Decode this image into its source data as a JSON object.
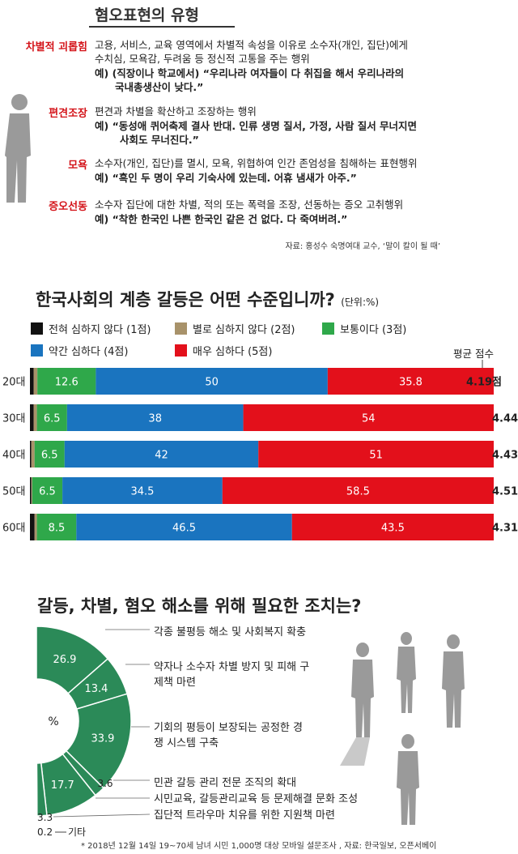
{
  "section1": {
    "title": "혐오표현의 유형",
    "items": [
      {
        "term": "차별적 괴롭힘",
        "lines": [
          "고용, 서비스, 교육 영역에서 차별적 속성을 이유로 소수자(개인, 집단)에게",
          "수치심, 모욕감, 두려움 등 정신적 고통을 주는 행위"
        ],
        "example": [
          "예) (직장이나 학교에서) “우리나라 여자들이 다 취집을 해서 우리나라의",
          "국내총생산이 낮다.”"
        ]
      },
      {
        "term": "편견조장",
        "lines": [
          "편견과 차별을 확산하고 조장하는 행위"
        ],
        "example": [
          "예) “동성애 퀴어축제 결사 반대. 인류 생명 질서, 가정, 사람 질서 무너지면",
          "사회도 무너진다.”"
        ]
      },
      {
        "term": "모욕",
        "lines": [
          "소수자(개인, 집단)를 멸시, 모욕, 위협하여 인간 존엄성을 침해하는 표현행위"
        ],
        "example": [
          "예) “흑인 두 명이 우리 기숙사에 있는데. 어휴 냄새가 아주.”"
        ]
      },
      {
        "term": "증오선동",
        "lines": [
          "소수자 집단에 대한 차별, 적의 또는 폭력을 조장, 선동하는 증오 고취행위"
        ],
        "example": [
          "예) “착한 한국인 나쁜 한국인 같은 건 없다. 다 죽여버려.”"
        ]
      }
    ],
    "source": "자료: 홍성수 숙명여대 교수, ‘말이 칼이 될 때’"
  },
  "section2": {
    "title": "한국사회의 계층 갈등은 어떤 수준입니까?",
    "unit": "(단위:%)",
    "avg_header": "평균 점수"
  },
  "section3": {
    "title": "갈등, 차별, 혐오 해소를 위해 필요한 조치는?",
    "center_label": "%",
    "others_label": "기타"
  },
  "footnote": "* 2018년 12월 14일 19~70세 남녀 시민 1,000명 대상 모바일 설문조사 , 자료: 한국일보, 오픈서베이",
  "colors": {
    "level1": "#111111",
    "level2": "#a8926a",
    "level3": "#2fa84a",
    "level4": "#1a74bf",
    "level5": "#e3101b",
    "donut": "#2b8a58",
    "accent_red": "#d4141a"
  },
  "chart_data": [
    {
      "type": "bar",
      "orientation": "horizontal-stacked",
      "categories": [
        "20대",
        "30대",
        "40대",
        "50대",
        "60대"
      ],
      "series": [
        {
          "name": "전혀 심하지 않다 (1점)",
          "color": "#111111",
          "values": [
            0.8,
            0.8,
            0.3,
            0.3,
            1.0
          ]
        },
        {
          "name": "별로 심하지 않다 (2점)",
          "color": "#a8926a",
          "values": [
            0.8,
            0.7,
            0.7,
            0.2,
            0.5
          ]
        },
        {
          "name": "보통이다 (3점)",
          "color": "#2fa84a",
          "values": [
            12.6,
            6.5,
            6.5,
            6.5,
            8.5
          ]
        },
        {
          "name": "약간 심하다 (4점)",
          "color": "#1a74bf",
          "values": [
            50,
            38,
            42,
            34.5,
            46.5
          ]
        },
        {
          "name": "매우 심하다 (5점)",
          "color": "#e3101b",
          "values": [
            35.8,
            54,
            51,
            58.5,
            43.5
          ]
        }
      ],
      "data_labels": {
        "보통이다 (3점)": [
          "12.6",
          "6.5",
          "6.5",
          "6.5",
          "8.5"
        ],
        "약간 심하다 (4점)": [
          "50",
          "38",
          "42",
          "34.5",
          "46.5"
        ],
        "매우 심하다 (5점)": [
          "35.8",
          "54",
          "51",
          "58.5",
          "43.5"
        ]
      },
      "average_scores": [
        "4.19점",
        "4.44",
        "4.43",
        "4.51",
        "4.31"
      ],
      "xlim": [
        0,
        100
      ],
      "legend": "top"
    },
    {
      "type": "pie",
      "style": "half-donut",
      "categories": [
        "각종 불평등 해소 및 사회복지 확충",
        "약자나 소수자 차별 방지 및 피해 구제책 마련",
        "기회의 평등이 보장되는 공정한 경쟁 시스템 구축",
        "민관 갈등 관리 전문 조직의 확대",
        "시민교육, 갈등관리교육 등 문제해결 문화 조성",
        "집단적 트라우마 치유를 위한 지원책 마련",
        "기타"
      ],
      "values": [
        26.9,
        13.4,
        33.9,
        3.6,
        17.7,
        3.3,
        0.2
      ],
      "value_labels": [
        "26.9",
        "13.4",
        "33.9",
        "3.6",
        "17.7",
        "3.3",
        "0.2"
      ]
    }
  ]
}
